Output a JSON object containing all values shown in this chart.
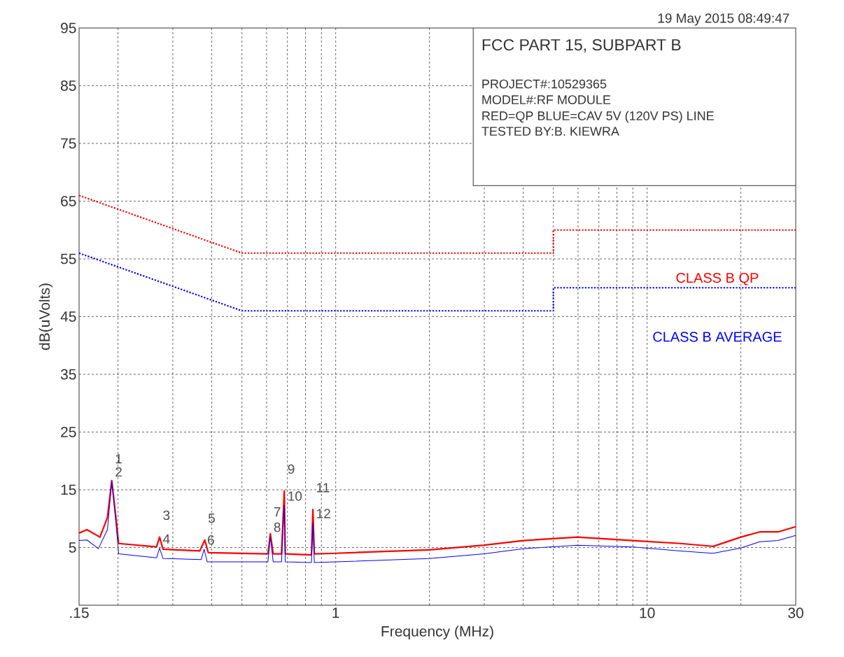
{
  "chart_data": {
    "type": "line",
    "title": "FCC PART 15, SUBPART B",
    "subtitle": "19 May 2015   08:49:47",
    "xlabel": "Frequency (MHz)",
    "ylabel": "dB(uVolts)",
    "log": "x",
    "grid": true,
    "marker": "none",
    "xlim": [
      0.15,
      30
    ],
    "ylim": [
      -5,
      95
    ],
    "xticks": [
      {
        "value": 0.15,
        "label": ".15"
      },
      {
        "value": 0.2,
        "label": null
      },
      {
        "value": 0.3,
        "label": null
      },
      {
        "value": 0.4,
        "label": null
      },
      {
        "value": 0.5,
        "label": null
      },
      {
        "value": 0.6,
        "label": null
      },
      {
        "value": 0.7,
        "label": null
      },
      {
        "value": 0.8,
        "label": null
      },
      {
        "value": 0.9,
        "label": null
      },
      1,
      {
        "value": 2,
        "label": null
      },
      {
        "value": 3,
        "label": null
      },
      {
        "value": 4,
        "label": null
      },
      {
        "value": 5,
        "label": null
      },
      {
        "value": 6,
        "label": null
      },
      {
        "value": 7,
        "label": null
      },
      {
        "value": 8,
        "label": null
      },
      {
        "value": 9,
        "label": null
      },
      10,
      {
        "value": 20,
        "label": null
      },
      30
    ],
    "yticks": [
      5,
      15,
      25,
      35,
      45,
      55,
      65,
      75,
      85,
      95
    ],
    "series": [
      {
        "name": "CLASS B QP",
        "color": "#ff0000",
        "line_style": "dotted",
        "x": [
          0.15,
          0.5,
          5,
          5,
          30
        ],
        "values": [
          66,
          56,
          56,
          60,
          60
        ]
      },
      {
        "name": "CLASS B AVERAGE",
        "color": "#0000ff",
        "line_style": "dotted",
        "x": [
          0.15,
          0.5,
          5,
          5,
          30
        ],
        "values": [
          56,
          46,
          46,
          50,
          50
        ]
      },
      {
        "color": "#ff0000",
        "line_style": "solid",
        "x": [
          0.15,
          0.159,
          0.175,
          0.185,
          0.191,
          0.197,
          0.201,
          0.266,
          0.272,
          0.279,
          0.366,
          0.38,
          0.39,
          0.606,
          0.617,
          0.63,
          0.67,
          0.684,
          0.689,
          0.836,
          0.845,
          0.854,
          1.0,
          2.0,
          3.0,
          4.0,
          5.97,
          9.0,
          12.8,
          16.3,
          20.0,
          23.0,
          26.3,
          30
        ],
        "values": [
          7.5,
          8.1,
          6.8,
          10.2,
          16.6,
          10.2,
          5.7,
          5.1,
          6.8,
          4.7,
          4.4,
          6.3,
          4.1,
          3.9,
          7.4,
          3.9,
          3.9,
          14.8,
          3.9,
          3.7,
          11.6,
          3.9,
          4.0,
          4.6,
          5.4,
          6.2,
          6.8,
          6.2,
          5.7,
          5.2,
          6.8,
          7.7,
          7.7,
          8.6
        ]
      },
      {
        "color": "#0000ff",
        "line_style": "solid",
        "x": [
          0.15,
          0.159,
          0.173,
          0.185,
          0.191,
          0.197,
          0.201,
          0.266,
          0.272,
          0.279,
          0.37,
          0.378,
          0.387,
          0.606,
          0.617,
          0.63,
          0.67,
          0.684,
          0.689,
          0.836,
          0.845,
          0.854,
          1.0,
          2.0,
          3.0,
          4.0,
          5.97,
          9.0,
          12.8,
          16.3,
          20.0,
          23.0,
          26.3,
          30
        ],
        "values": [
          6.2,
          6.3,
          4.8,
          8.1,
          16.5,
          9.3,
          3.9,
          3.2,
          4.9,
          3.1,
          2.9,
          4.7,
          2.5,
          2.5,
          6.9,
          2.5,
          2.5,
          12.3,
          2.5,
          2.4,
          9.3,
          2.4,
          2.5,
          3.1,
          3.9,
          4.8,
          5.4,
          5.1,
          4.4,
          4.0,
          4.9,
          6.0,
          6.2,
          7.1
        ]
      }
    ],
    "annotations": [
      "PROJECT#:10529365",
      "MODEL#:RF MODULE",
      "RED=QP BLUE=CAV 5V (120V PS) LINE",
      "TESTED BY:B. KIEWRA",
      {
        "text": "1",
        "x": 0.191,
        "y": 16.6
      },
      {
        "text": "2",
        "x": 0.191,
        "y": 16.5
      },
      {
        "text": "3",
        "x": 0.272,
        "y": 6.8
      },
      {
        "text": "4",
        "x": 0.272,
        "y": 4.9
      },
      {
        "text": "5",
        "x": 0.38,
        "y": 6.3
      },
      {
        "text": "6",
        "x": 0.378,
        "y": 4.7
      },
      {
        "text": "7",
        "x": 0.617,
        "y": 7.4
      },
      {
        "text": "8",
        "x": 0.617,
        "y": 6.9
      },
      {
        "text": "9",
        "x": 0.684,
        "y": 14.8
      },
      {
        "text": "10",
        "x": 0.684,
        "y": 12.3
      },
      {
        "text": "11",
        "x": 0.845,
        "y": 11.6
      },
      {
        "text": "12",
        "x": 0.845,
        "y": 9.3
      }
    ]
  }
}
